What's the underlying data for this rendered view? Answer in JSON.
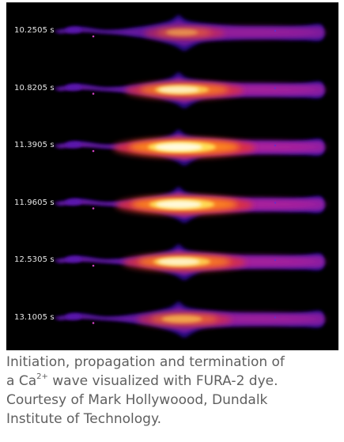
{
  "figure": {
    "timestamps": [
      "10.2505 s",
      "10.8205 s",
      "11.3905 s",
      "11.9605 s",
      "12.5305 s",
      "13.1005 s"
    ],
    "frame_intensity": [
      0.35,
      0.75,
      1.0,
      0.95,
      0.8,
      0.5
    ]
  },
  "caption": {
    "line1": "Initiation, propagation and termination of",
    "line2_pre": "a Ca",
    "line2_sup": "2+",
    "line2_post": " wave visualized with FURA-2 dye.",
    "line3": "Courtesy of Mark Hollywoood, Dundalk",
    "line4": "Institute of Technology."
  }
}
